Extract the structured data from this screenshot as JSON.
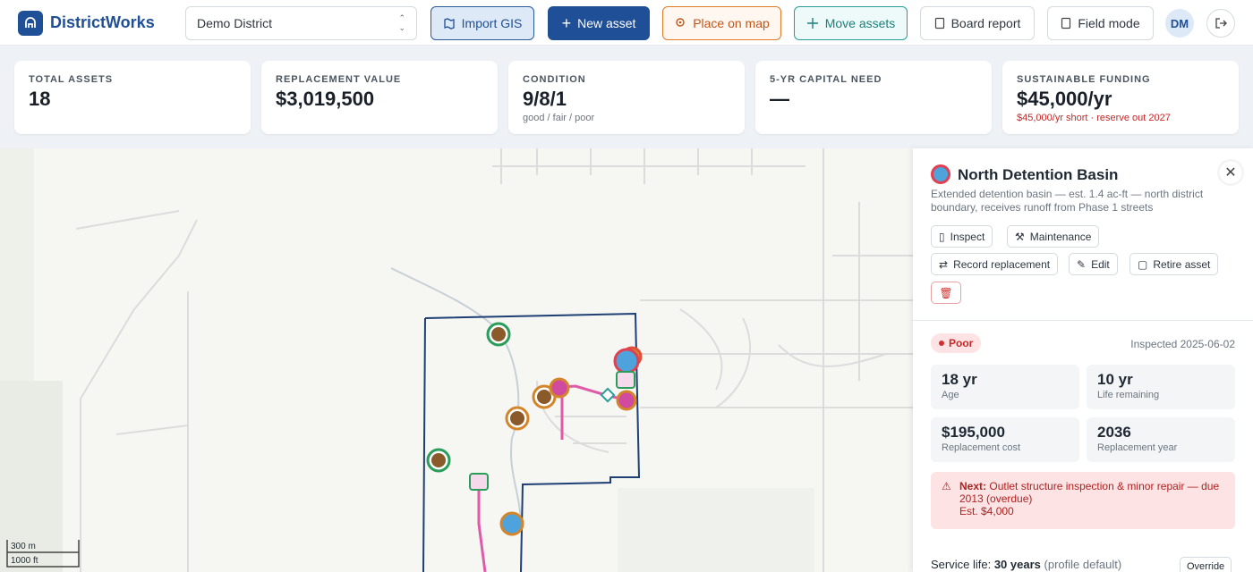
{
  "header": {
    "brand": "DistrictWorks",
    "district": "Demo District",
    "buttons": [
      "Import GIS",
      "New asset",
      "Place on map",
      "Move assets",
      "Board report",
      "Field mode"
    ],
    "user": "DM"
  },
  "stats": [
    {
      "label": "TOTAL ASSETS",
      "value": "18"
    },
    {
      "label": "REPLACEMENT VALUE",
      "value": "$3,019,500"
    },
    {
      "label": "CONDITION",
      "value": "9/8/1",
      "sub": "good / fair / poor"
    },
    {
      "label": "5-YR CAPITAL NEED",
      "value": "—"
    },
    {
      "label": "SUSTAINABLE FUNDING",
      "value": "$45,000/yr",
      "sub": "$45,000/yr short · reserve out 2027"
    }
  ],
  "map": {
    "scale": [
      "300 m",
      "1000 ft"
    ]
  },
  "panel": {
    "title": "North Detention Basin",
    "description": "Extended detention basin — est. 1.4 ac-ft — north district boundary, receives runoff from Phase 1 streets",
    "actions": [
      "Inspect",
      "Maintenance",
      "Record replacement",
      "Edit",
      "Retire asset"
    ],
    "status": "Poor",
    "inspected": "Inspected 2025-06-02",
    "metrics": [
      {
        "value": "18 yr",
        "label": "Age"
      },
      {
        "value": "10 yr",
        "label": "Life remaining"
      },
      {
        "value": "$195,000",
        "label": "Replacement cost"
      },
      {
        "value": "2036",
        "label": "Replacement year"
      }
    ],
    "next": {
      "label": "Next:",
      "text": "Outlet structure inspection & minor repair — due 2013 (overdue)",
      "estimate": "Est. $4,000"
    },
    "service_life": {
      "label": "Service life:",
      "value": "30 years",
      "note": "(profile default)",
      "button": "Override"
    }
  }
}
